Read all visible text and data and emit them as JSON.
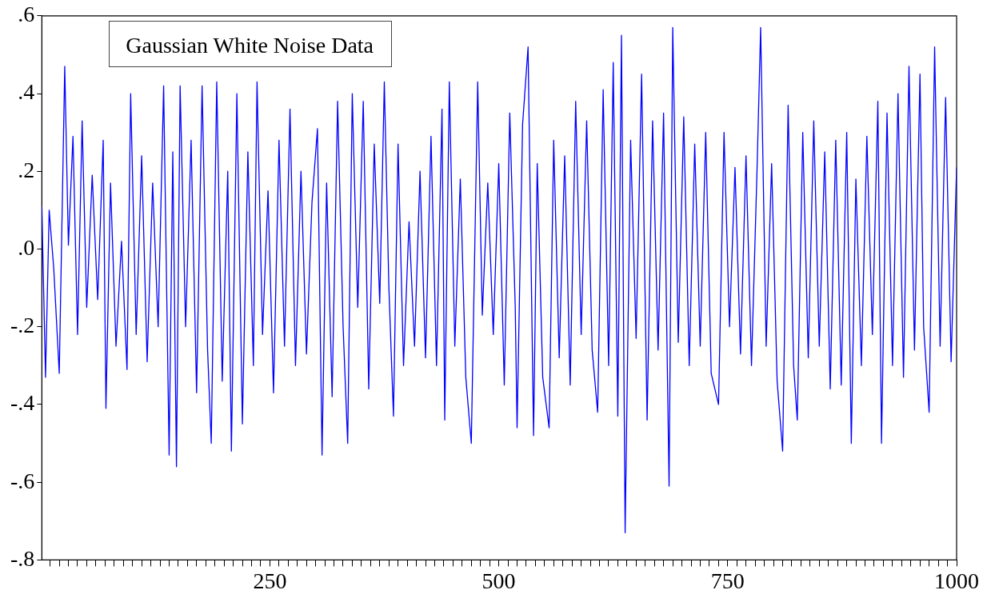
{
  "chart_data": {
    "type": "line",
    "title": "Gaussian White Noise Data",
    "xlim": [
      1,
      1000
    ],
    "xticks": [
      {
        "value": 10,
        "label": null
      },
      {
        "value": 20,
        "label": null
      },
      {
        "value": 30,
        "label": null
      },
      {
        "value": 40,
        "label": null
      },
      {
        "value": 50,
        "label": null
      },
      {
        "value": 60,
        "label": null
      },
      {
        "value": 70,
        "label": null
      },
      {
        "value": 80,
        "label": null
      },
      {
        "value": 90,
        "label": null
      },
      {
        "value": 100,
        "label": null
      },
      {
        "value": 110,
        "label": null
      },
      {
        "value": 120,
        "label": null
      },
      {
        "value": 130,
        "label": null
      },
      {
        "value": 140,
        "label": null
      },
      {
        "value": 150,
        "label": null
      },
      {
        "value": 160,
        "label": null
      },
      {
        "value": 170,
        "label": null
      },
      {
        "value": 180,
        "label": null
      },
      {
        "value": 190,
        "label": null
      },
      {
        "value": 200,
        "label": null
      },
      {
        "value": 210,
        "label": null
      },
      {
        "value": 220,
        "label": null
      },
      {
        "value": 230,
        "label": null
      },
      {
        "value": 240,
        "label": null
      },
      250,
      {
        "value": 260,
        "label": null
      },
      {
        "value": 270,
        "label": null
      },
      {
        "value": 280,
        "label": null
      },
      {
        "value": 290,
        "label": null
      },
      {
        "value": 300,
        "label": null
      },
      {
        "value": 310,
        "label": null
      },
      {
        "value": 320,
        "label": null
      },
      {
        "value": 330,
        "label": null
      },
      {
        "value": 340,
        "label": null
      },
      {
        "value": 350,
        "label": null
      },
      {
        "value": 360,
        "label": null
      },
      {
        "value": 370,
        "label": null
      },
      {
        "value": 380,
        "label": null
      },
      {
        "value": 390,
        "label": null
      },
      {
        "value": 400,
        "label": null
      },
      {
        "value": 410,
        "label": null
      },
      {
        "value": 420,
        "label": null
      },
      {
        "value": 430,
        "label": null
      },
      {
        "value": 440,
        "label": null
      },
      {
        "value": 450,
        "label": null
      },
      {
        "value": 460,
        "label": null
      },
      {
        "value": 470,
        "label": null
      },
      {
        "value": 480,
        "label": null
      },
      {
        "value": 490,
        "label": null
      },
      500,
      {
        "value": 510,
        "label": null
      },
      {
        "value": 520,
        "label": null
      },
      {
        "value": 530,
        "label": null
      },
      {
        "value": 540,
        "label": null
      },
      {
        "value": 550,
        "label": null
      },
      {
        "value": 560,
        "label": null
      },
      {
        "value": 570,
        "label": null
      },
      {
        "value": 580,
        "label": null
      },
      {
        "value": 590,
        "label": null
      },
      {
        "value": 600,
        "label": null
      },
      {
        "value": 610,
        "label": null
      },
      {
        "value": 620,
        "label": null
      },
      {
        "value": 630,
        "label": null
      },
      {
        "value": 640,
        "label": null
      },
      {
        "value": 650,
        "label": null
      },
      {
        "value": 660,
        "label": null
      },
      {
        "value": 670,
        "label": null
      },
      {
        "value": 680,
        "label": null
      },
      {
        "value": 690,
        "label": null
      },
      {
        "value": 700,
        "label": null
      },
      {
        "value": 710,
        "label": null
      },
      {
        "value": 720,
        "label": null
      },
      {
        "value": 730,
        "label": null
      },
      {
        "value": 740,
        "label": null
      },
      750,
      {
        "value": 760,
        "label": null
      },
      {
        "value": 770,
        "label": null
      },
      {
        "value": 780,
        "label": null
      },
      {
        "value": 790,
        "label": null
      },
      {
        "value": 800,
        "label": null
      },
      {
        "value": 810,
        "label": null
      },
      {
        "value": 820,
        "label": null
      },
      {
        "value": 830,
        "label": null
      },
      {
        "value": 840,
        "label": null
      },
      {
        "value": 850,
        "label": null
      },
      {
        "value": 860,
        "label": null
      },
      {
        "value": 870,
        "label": null
      },
      {
        "value": 880,
        "label": null
      },
      {
        "value": 890,
        "label": null
      },
      {
        "value": 900,
        "label": null
      },
      {
        "value": 910,
        "label": null
      },
      {
        "value": 920,
        "label": null
      },
      {
        "value": 930,
        "label": null
      },
      {
        "value": 940,
        "label": null
      },
      {
        "value": 950,
        "label": null
      },
      {
        "value": 960,
        "label": null
      },
      {
        "value": 970,
        "label": null
      },
      {
        "value": 980,
        "label": null
      },
      {
        "value": 990,
        "label": null
      },
      1000
    ],
    "ylim": [
      -0.8,
      0.6
    ],
    "yticks": [
      {
        "value": -0.8,
        "label": "-.8"
      },
      {
        "value": -0.6,
        "label": "-.6"
      },
      {
        "value": -0.4,
        "label": "-.4"
      },
      {
        "value": -0.2,
        "label": "-.2"
      },
      {
        "value": 0,
        "label": ".0"
      },
      {
        "value": 0.2,
        "label": ".2"
      },
      {
        "value": 0.4,
        "label": ".4"
      },
      {
        "value": 0.6,
        "label": ".6"
      }
    ],
    "grid": false,
    "legend": false,
    "marker": "none",
    "line_style": "solid",
    "x": [
      1,
      5,
      9,
      14,
      20,
      26,
      30,
      35,
      40,
      45,
      50,
      56,
      62,
      68,
      71,
      76,
      82,
      88,
      94,
      98,
      104,
      110,
      116,
      122,
      128,
      134,
      140,
      144,
      148,
      152,
      158,
      164,
      170,
      176,
      182,
      186,
      192,
      198,
      204,
      208,
      214,
      220,
      226,
      232,
      236,
      242,
      248,
      254,
      260,
      266,
      272,
      278,
      284,
      290,
      296,
      302,
      307,
      312,
      318,
      324,
      330,
      335,
      340,
      346,
      352,
      358,
      364,
      370,
      375,
      380,
      385,
      390,
      396,
      402,
      408,
      414,
      420,
      426,
      432,
      438,
      441,
      446,
      452,
      458,
      464,
      470,
      477,
      482,
      488,
      494,
      500,
      506,
      512,
      518,
      520,
      526,
      532,
      538,
      542,
      548,
      555,
      560,
      566,
      572,
      578,
      584,
      590,
      596,
      602,
      608,
      614,
      620,
      625,
      630,
      634,
      638,
      644,
      650,
      656,
      662,
      668,
      674,
      680,
      686,
      690,
      696,
      702,
      708,
      714,
      720,
      726,
      732,
      740,
      746,
      752,
      758,
      764,
      770,
      776,
      782,
      786,
      792,
      798,
      804,
      810,
      816,
      822,
      826,
      832,
      838,
      844,
      850,
      856,
      862,
      868,
      874,
      880,
      885,
      890,
      896,
      902,
      908,
      914,
      918,
      924,
      930,
      936,
      942,
      948,
      954,
      960,
      964,
      970,
      976,
      982,
      988,
      994,
      1000
    ],
    "series": [
      {
        "color": "#0000ff",
        "values": [
          0.11,
          -0.33,
          0.1,
          -0.05,
          -0.32,
          0.47,
          0.01,
          0.29,
          -0.22,
          0.33,
          -0.15,
          0.19,
          -0.13,
          0.28,
          -0.41,
          0.17,
          -0.25,
          0.02,
          -0.31,
          0.4,
          -0.22,
          0.24,
          -0.29,
          0.17,
          -0.2,
          0.42,
          -0.53,
          0.25,
          -0.56,
          0.42,
          -0.2,
          0.28,
          -0.37,
          0.42,
          -0.26,
          -0.5,
          0.43,
          -0.34,
          0.2,
          -0.52,
          0.4,
          -0.45,
          0.25,
          -0.3,
          0.43,
          -0.22,
          0.15,
          -0.37,
          0.28,
          -0.25,
          0.36,
          -0.3,
          0.2,
          -0.27,
          0.12,
          0.31,
          -0.53,
          0.17,
          -0.38,
          0.38,
          -0.2,
          -0.5,
          0.4,
          -0.15,
          0.38,
          -0.36,
          0.27,
          -0.14,
          0.43,
          -0.1,
          -0.43,
          0.27,
          -0.3,
          0.07,
          -0.25,
          0.2,
          -0.28,
          0.29,
          -0.3,
          0.36,
          -0.44,
          0.43,
          -0.25,
          0.18,
          -0.33,
          -0.5,
          0.43,
          -0.17,
          0.17,
          -0.22,
          0.22,
          -0.35,
          0.35,
          -0.15,
          -0.46,
          0.32,
          0.52,
          -0.48,
          0.22,
          -0.33,
          -0.46,
          0.28,
          -0.28,
          0.24,
          -0.35,
          0.38,
          -0.22,
          0.33,
          -0.26,
          -0.42,
          0.41,
          -0.3,
          0.48,
          -0.43,
          0.55,
          -0.73,
          0.28,
          -0.23,
          0.45,
          -0.44,
          0.33,
          -0.26,
          0.35,
          -0.61,
          0.57,
          -0.24,
          0.34,
          -0.3,
          0.27,
          -0.25,
          0.3,
          -0.32,
          -0.4,
          0.3,
          -0.2,
          0.21,
          -0.27,
          0.24,
          -0.3,
          0.2,
          0.57,
          -0.25,
          0.22,
          -0.34,
          -0.52,
          0.37,
          -0.3,
          -0.44,
          0.3,
          -0.28,
          0.33,
          -0.25,
          0.25,
          -0.36,
          0.28,
          -0.35,
          0.3,
          -0.5,
          0.18,
          -0.3,
          0.29,
          -0.22,
          0.38,
          -0.5,
          0.35,
          -0.3,
          0.4,
          -0.33,
          0.47,
          -0.26,
          0.45,
          -0.2,
          -0.42,
          0.52,
          -0.25,
          0.39,
          -0.29,
          0.21
        ]
      }
    ]
  }
}
